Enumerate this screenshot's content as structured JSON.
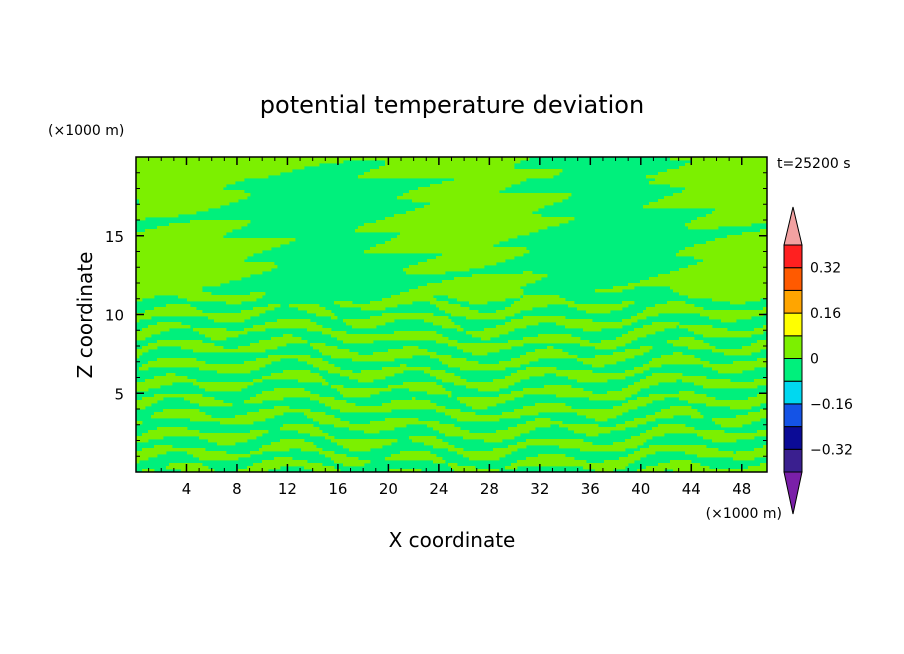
{
  "chart_data": {
    "type": "heatmap",
    "title": "potential temperature deviation",
    "xlabel": "X coordinate",
    "ylabel": "Z coordinate",
    "x_unit": "(×1000 m)",
    "y_unit": "(×1000 m)",
    "time_label": "t=25200 s",
    "xlim": [
      0,
      50
    ],
    "ylim": [
      0,
      20
    ],
    "x_ticks": [
      4,
      8,
      12,
      16,
      20,
      24,
      28,
      32,
      36,
      40,
      44,
      48
    ],
    "y_ticks": [
      5,
      10,
      15
    ],
    "colorbar": {
      "levels": [
        -0.4,
        -0.32,
        -0.24,
        -0.16,
        -0.08,
        0,
        0.08,
        0.16,
        0.24,
        0.32,
        0.4
      ],
      "tick_labels": [
        "0.32",
        "0.16",
        "0",
        "−0.16",
        "−0.32"
      ],
      "tick_values": [
        0.32,
        0.16,
        0,
        -0.16,
        -0.32
      ],
      "colors_bottom_to_top": [
        "#3a1f8f",
        "#0b0b96",
        "#1453e6",
        "#00d8f0",
        "#00f07c",
        "#7cf000",
        "#ffff00",
        "#ffa500",
        "#ff5a00",
        "#ff2020"
      ],
      "under_color": "#7a1fa8",
      "over_color": "#f2a1a1"
    },
    "field_summary": {
      "dominant_levels": [
        "-0.08 to 0",
        "0 to 0.08"
      ],
      "colors": {
        "negative": "#00f07c",
        "positive": "#7cf000"
      }
    }
  }
}
